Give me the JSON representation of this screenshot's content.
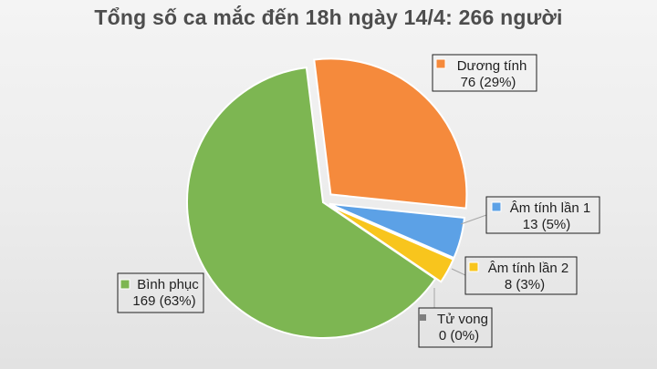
{
  "chart_data": {
    "type": "pie",
    "title": "Tổng số ca mắc đến 18h ngày 14/4: 266 người",
    "slices": [
      {
        "name": "Dương tính",
        "value": 76,
        "value_label": "76 (29%)",
        "color": "#f58a3c"
      },
      {
        "name": "Âm tính lần 1",
        "value": 13,
        "value_label": "13 (5%)",
        "color": "#5ca1e6"
      },
      {
        "name": "Âm tính lần 2",
        "value": 8,
        "value_label": "8 (3%)",
        "color": "#f8c51d"
      },
      {
        "name": "Tử vong",
        "value": 0,
        "value_label": "0 (0%)",
        "color": "#7f7f7f"
      },
      {
        "name": "Bình phục",
        "value": 169,
        "value_label": "169 (63%)",
        "color": "#7db652"
      }
    ]
  }
}
